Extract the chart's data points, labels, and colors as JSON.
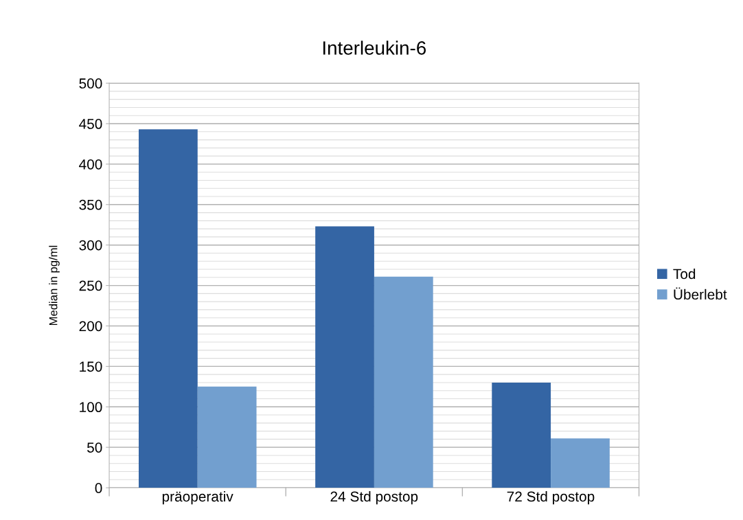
{
  "chart_data": {
    "type": "bar",
    "title": "Interleukin-6",
    "ylabel": "Median in pg/ml",
    "categories": [
      "präoperativ",
      "24 Std postop",
      "72 Std postop"
    ],
    "series": [
      {
        "name": "Tod",
        "color": "#3465a4",
        "values": [
          443,
          323,
          130
        ]
      },
      {
        "name": "Überlebt",
        "color": "#729fcf",
        "values": [
          125,
          261,
          61
        ]
      }
    ],
    "ylim": [
      0,
      500
    ],
    "yticks": [
      0,
      50,
      100,
      150,
      200,
      250,
      300,
      350,
      400,
      450,
      500
    ],
    "grid": "y",
    "legend": "right"
  }
}
